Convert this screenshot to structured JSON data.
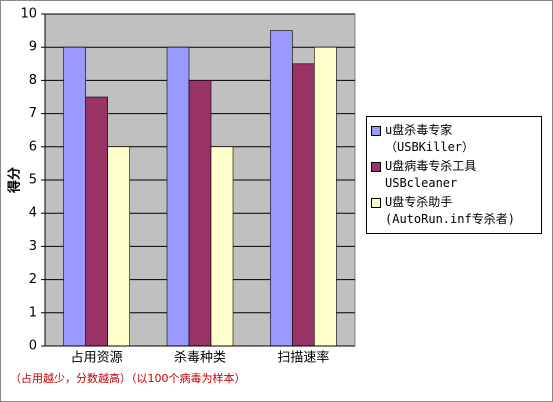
{
  "chart_data": {
    "type": "bar",
    "y_label": "得分",
    "annotation": "（占用越少，分数越高）（以100个病毒为样本）",
    "categories": [
      "占用资源",
      "杀毒种类",
      "扫描速率"
    ],
    "series": [
      {
        "name": "u盘杀毒专家\n（USBKiller）",
        "color": "#9999ff",
        "values": [
          9,
          9,
          9.5
        ]
      },
      {
        "name": "U盘病毒专杀工具\nUSBcleaner",
        "color": "#993366",
        "values": [
          7.5,
          8,
          8.5
        ]
      },
      {
        "name": "U盘专杀助手\n(AutoRun.inf专杀者)",
        "color": "#ffffcc",
        "values": [
          6,
          6,
          9
        ]
      }
    ],
    "ylim": [
      0,
      10
    ],
    "yticks": [
      0,
      1,
      2,
      3,
      4,
      5,
      6,
      7,
      8,
      9,
      10
    ],
    "grid": true,
    "legend": "right"
  }
}
